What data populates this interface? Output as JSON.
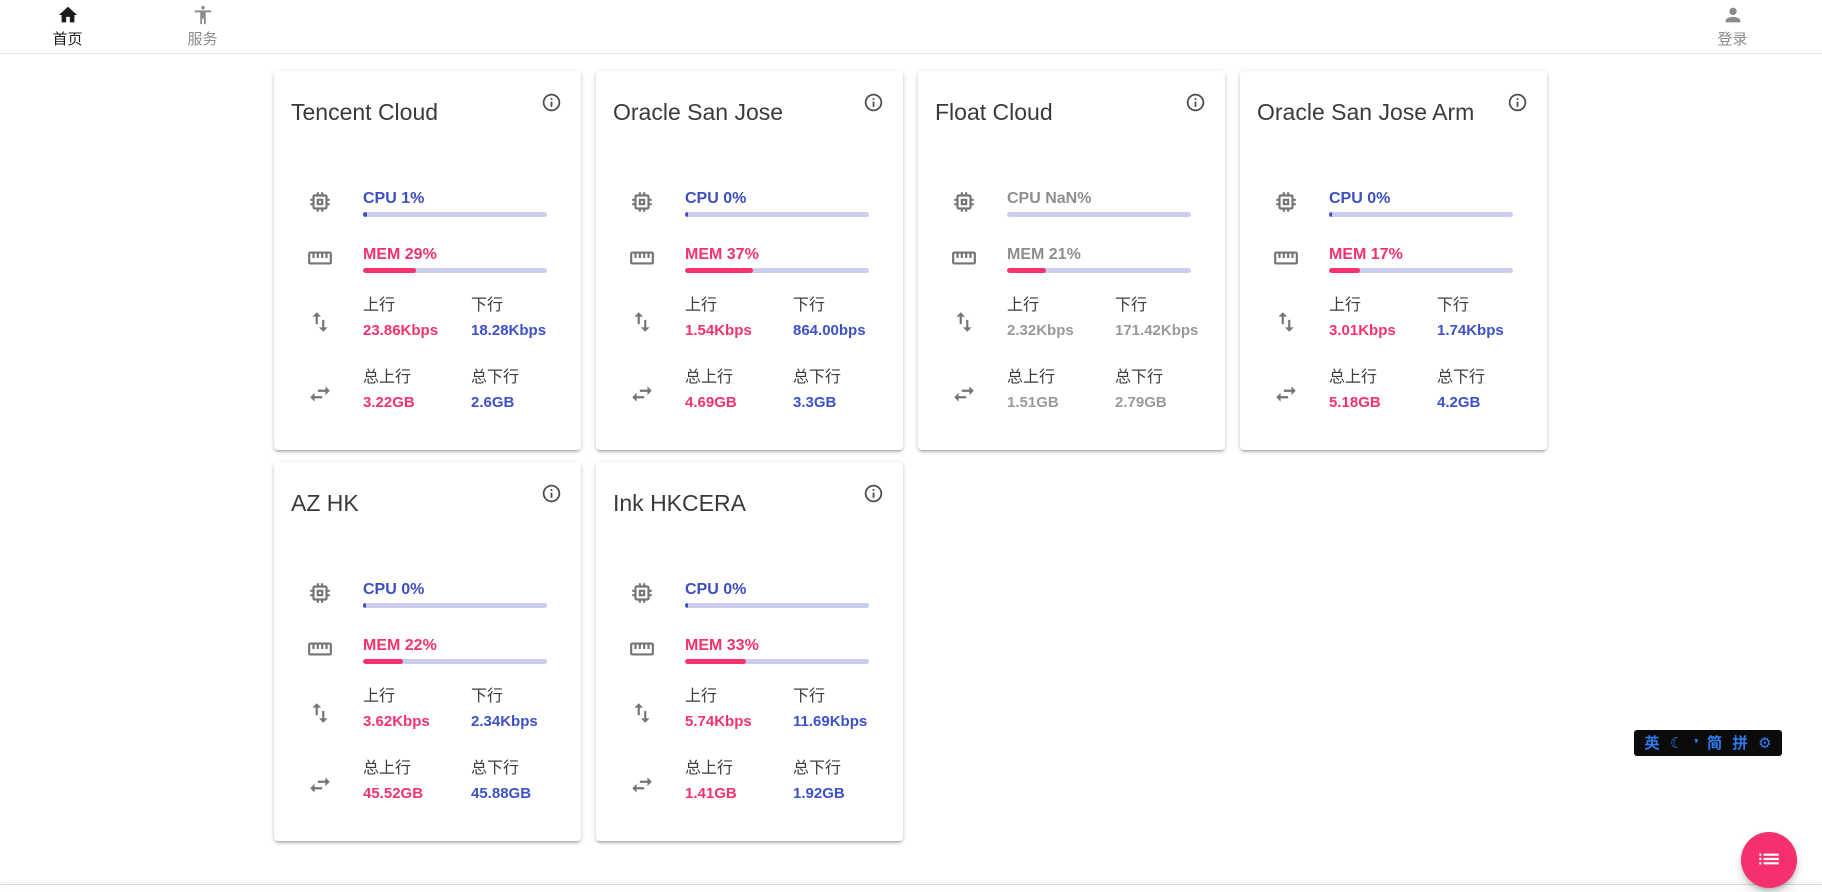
{
  "header": {
    "home_tab": {
      "label": "首页"
    },
    "service_tab": {
      "label": "服务"
    },
    "login_btn": {
      "label": "登录"
    }
  },
  "labels": {
    "up": "上行",
    "down": "下行",
    "total_up": "总上行",
    "total_down": "总下行"
  },
  "colors": {
    "cpu_accent": "#3d4ec0",
    "mem_accent": "#f4336e",
    "bar_track": "#c9cef1",
    "muted_text": "#9a9a9a",
    "fab": "#f4316d",
    "ime_text": "#2f7df0"
  },
  "servers": [
    {
      "name": "Tencent Cloud",
      "muted": false,
      "cpu": {
        "label": "CPU 1%",
        "fill": "2%"
      },
      "mem": {
        "label": "MEM 29%",
        "fill": "29%"
      },
      "up": "23.86Kbps",
      "down": "18.28Kbps",
      "total_up": "3.22GB",
      "total_down": "2.6GB"
    },
    {
      "name": "Oracle San Jose",
      "muted": false,
      "cpu": {
        "label": "CPU 0%",
        "fill": "1.5%"
      },
      "mem": {
        "label": "MEM 37%",
        "fill": "37%"
      },
      "up": "1.54Kbps",
      "down": "864.00bps",
      "total_up": "4.69GB",
      "total_down": "3.3GB"
    },
    {
      "name": "Float Cloud",
      "muted": true,
      "cpu": {
        "label": "CPU NaN%",
        "fill": "0%"
      },
      "mem": {
        "label": "MEM 21%",
        "fill": "21%"
      },
      "up": "2.32Kbps",
      "down": "171.42Kbps",
      "total_up": "1.51GB",
      "total_down": "2.79GB"
    },
    {
      "name": "Oracle San Jose Arm",
      "muted": false,
      "cpu": {
        "label": "CPU 0%",
        "fill": "1.5%"
      },
      "mem": {
        "label": "MEM 17%",
        "fill": "17%"
      },
      "up": "3.01Kbps",
      "down": "1.74Kbps",
      "total_up": "5.18GB",
      "total_down": "4.2GB"
    },
    {
      "name": "AZ HK",
      "muted": false,
      "cpu": {
        "label": "CPU 0%",
        "fill": "1.5%"
      },
      "mem": {
        "label": "MEM 22%",
        "fill": "22%"
      },
      "up": "3.62Kbps",
      "down": "2.34Kbps",
      "total_up": "45.52GB",
      "total_down": "45.88GB"
    },
    {
      "name": "Ink HKCERA",
      "muted": false,
      "cpu": {
        "label": "CPU 0%",
        "fill": "1.5%"
      },
      "mem": {
        "label": "MEM 33%",
        "fill": "33%"
      },
      "up": "5.74Kbps",
      "down": "11.69Kbps",
      "total_up": "1.41GB",
      "total_down": "1.92GB"
    }
  ],
  "ime_bar": {
    "english": "英",
    "moon": "☾",
    "apostrophe": "’’",
    "simplified": "简",
    "pinyin": "拼",
    "gear": "⚙"
  }
}
